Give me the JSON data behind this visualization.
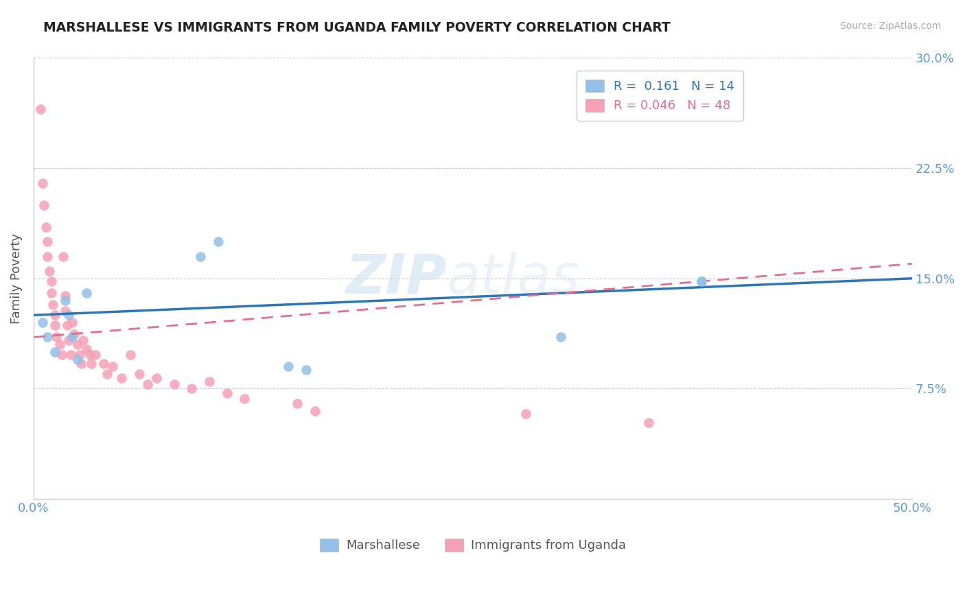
{
  "title": "MARSHALLESE VS IMMIGRANTS FROM UGANDA FAMILY POVERTY CORRELATION CHART",
  "source": "Source: ZipAtlas.com",
  "ylabel": "Family Poverty",
  "xlim": [
    0,
    0.5
  ],
  "ylim": [
    0,
    0.3
  ],
  "xticks": [
    0.0,
    0.1,
    0.2,
    0.3,
    0.4,
    0.5
  ],
  "xtick_labels": [
    "0.0%",
    "",
    "",
    "",
    "",
    "50.0%"
  ],
  "yticks": [
    0.0,
    0.075,
    0.15,
    0.225,
    0.3
  ],
  "ytick_labels_right": [
    "",
    "7.5%",
    "15.0%",
    "22.5%",
    "30.0%"
  ],
  "grid_color": "#cccccc",
  "background_color": "#ffffff",
  "marshallese_color": "#92c0e8",
  "uganda_color": "#f5a0b5",
  "marshallese_line_color": "#2e75b6",
  "uganda_line_color": "#e07090",
  "marshallese_R": 0.161,
  "marshallese_N": 14,
  "uganda_R": 0.046,
  "uganda_N": 48,
  "legend_label_marshallese": "Marshallese",
  "legend_label_uganda": "Immigrants from Uganda",
  "axis_color": "#5b9bd5",
  "watermark_zip": "ZIP",
  "watermark_atlas": "atlas",
  "marshallese_x": [
    0.005,
    0.008,
    0.012,
    0.018,
    0.02,
    0.022,
    0.025,
    0.03,
    0.095,
    0.105,
    0.145,
    0.155,
    0.3,
    0.38
  ],
  "marshallese_y": [
    0.12,
    0.11,
    0.1,
    0.135,
    0.125,
    0.11,
    0.095,
    0.14,
    0.165,
    0.175,
    0.09,
    0.088,
    0.11,
    0.148
  ],
  "uganda_x": [
    0.004,
    0.005,
    0.006,
    0.007,
    0.008,
    0.008,
    0.009,
    0.01,
    0.01,
    0.011,
    0.012,
    0.012,
    0.013,
    0.015,
    0.016,
    0.017,
    0.018,
    0.018,
    0.019,
    0.02,
    0.021,
    0.022,
    0.023,
    0.025,
    0.026,
    0.027,
    0.028,
    0.03,
    0.032,
    0.033,
    0.035,
    0.04,
    0.042,
    0.045,
    0.05,
    0.055,
    0.06,
    0.065,
    0.07,
    0.08,
    0.09,
    0.1,
    0.11,
    0.12,
    0.15,
    0.16,
    0.28,
    0.35
  ],
  "uganda_y": [
    0.265,
    0.215,
    0.2,
    0.185,
    0.175,
    0.165,
    0.155,
    0.148,
    0.14,
    0.132,
    0.125,
    0.118,
    0.11,
    0.105,
    0.098,
    0.165,
    0.138,
    0.128,
    0.118,
    0.108,
    0.098,
    0.12,
    0.112,
    0.105,
    0.098,
    0.092,
    0.108,
    0.102,
    0.098,
    0.092,
    0.098,
    0.092,
    0.085,
    0.09,
    0.082,
    0.098,
    0.085,
    0.078,
    0.082,
    0.078,
    0.075,
    0.08,
    0.072,
    0.068,
    0.065,
    0.06,
    0.058,
    0.052
  ]
}
